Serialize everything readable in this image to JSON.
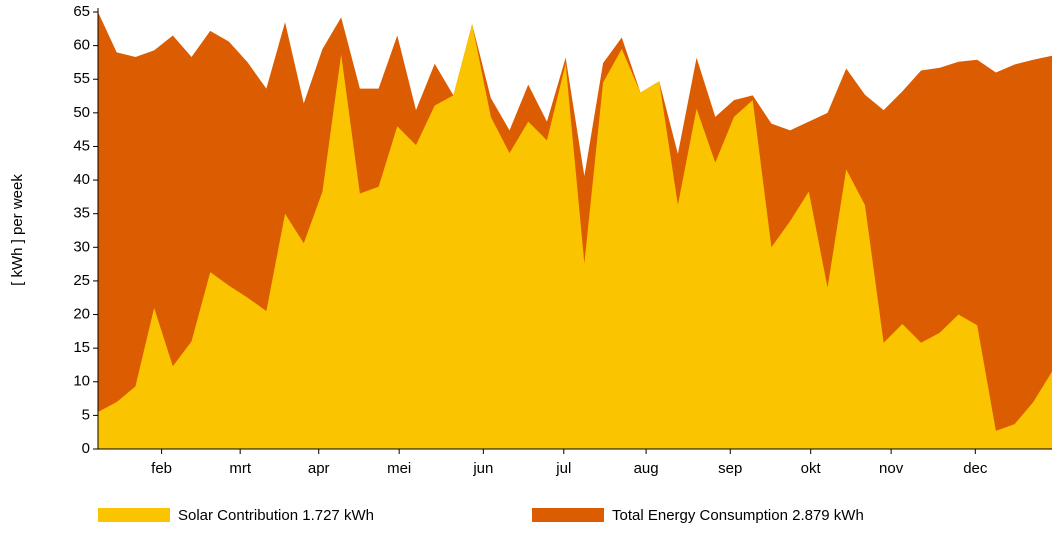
{
  "chart_data": {
    "type": "area",
    "y_label": "[ kWh ]  per week",
    "categories": [
      null,
      null,
      null,
      null,
      null,
      null,
      null,
      null,
      null,
      null,
      null,
      null,
      null,
      null,
      null,
      null,
      null,
      null,
      null,
      null,
      null,
      null,
      null,
      null,
      null,
      null,
      null,
      null,
      null,
      null,
      null,
      null,
      null,
      null,
      null,
      null,
      null,
      null,
      null,
      null,
      null,
      null,
      null,
      null,
      null,
      null,
      null,
      null,
      null,
      null,
      null,
      null
    ],
    "series": [
      {
        "name": "Total Energy Consumption 2.879 kWh",
        "color": "#dc5c02",
        "values": [
          65,
          59,
          58.3,
          59.3,
          61.5,
          58.3,
          62.2,
          60.6,
          57.5,
          53.6,
          63.5,
          51.4,
          59.5,
          64.2,
          53.6,
          53.6,
          61.5,
          50.4,
          57.3,
          52.6,
          63.2,
          52.2,
          47.4,
          54.2,
          48.7,
          58.2,
          40.6,
          57.4,
          61.2,
          53,
          54.7,
          43.9,
          58.2,
          49.4,
          51.9,
          52.6,
          48.4,
          47.4,
          48.7,
          50,
          56.6,
          52.7,
          50.4,
          53.2,
          56.3,
          56.7,
          57.6,
          57.9,
          56,
          57.2,
          57.9,
          58.5
        ]
      },
      {
        "name": "Solar Contribution 1.727 kWh",
        "color": "#fbc400",
        "values": [
          5.5,
          7,
          9.3,
          21,
          12.3,
          16,
          26.3,
          24.3,
          22.5,
          20.5,
          35,
          30.6,
          38.3,
          58.7,
          38,
          39,
          48,
          45.2,
          51.1,
          52.6,
          63.2,
          49.4,
          44,
          48.7,
          45.9,
          57.3,
          27.6,
          54.5,
          59.5,
          53,
          54.7,
          36.3,
          50.6,
          42.6,
          49.4,
          51.9,
          30,
          33.9,
          38.3,
          24,
          41.6,
          36.3,
          15.8,
          18.6,
          15.8,
          17.3,
          20,
          18.4,
          2.7,
          3.7,
          7,
          11.5
        ]
      }
    ],
    "legend_order": [
      1,
      0
    ],
    "ylim": [
      0,
      65
    ],
    "yticks": [
      0,
      5,
      10,
      15,
      20,
      25,
      30,
      35,
      40,
      45,
      50,
      55,
      60,
      65
    ],
    "xticks": [
      {
        "value": 3.4,
        "label": "feb"
      },
      {
        "value": 7.6,
        "label": "mrt"
      },
      {
        "value": 11.8,
        "label": "apr"
      },
      {
        "value": 16.1,
        "label": "mei"
      },
      {
        "value": 20.6,
        "label": "jun"
      },
      {
        "value": 24.9,
        "label": "jul"
      },
      {
        "value": 29.3,
        "label": "aug"
      },
      {
        "value": 33.8,
        "label": "sep"
      },
      {
        "value": 38.1,
        "label": "okt"
      },
      {
        "value": 42.4,
        "label": "nov"
      },
      {
        "value": 46.9,
        "label": "dec"
      }
    ]
  }
}
